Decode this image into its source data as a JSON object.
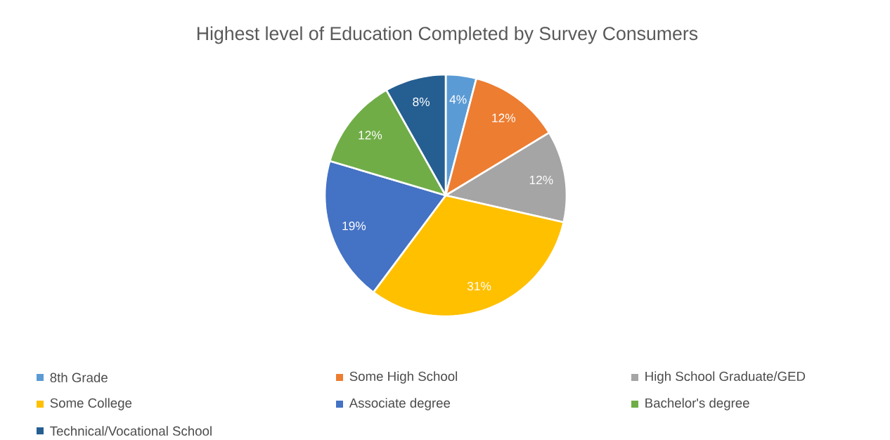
{
  "chart_data": {
    "type": "pie",
    "title": "Highest level of Education Completed by Survey Consumers",
    "categories": [
      "8th Grade",
      "Some High School",
      "High School Graduate/GED",
      "Some College",
      "Associate degree",
      "Bachelor's degree",
      "Technical/Vocational School"
    ],
    "values": [
      4,
      12,
      12,
      31,
      19,
      12,
      8
    ],
    "value_labels": [
      "4%",
      "12%",
      "12%",
      "31%",
      "19%",
      "12%",
      "8%"
    ],
    "colors": [
      "#5b9bd5",
      "#ed7d31",
      "#a5a5a5",
      "#ffc000",
      "#4472c4",
      "#70ad47",
      "#255e91"
    ],
    "legend": "bottom"
  }
}
